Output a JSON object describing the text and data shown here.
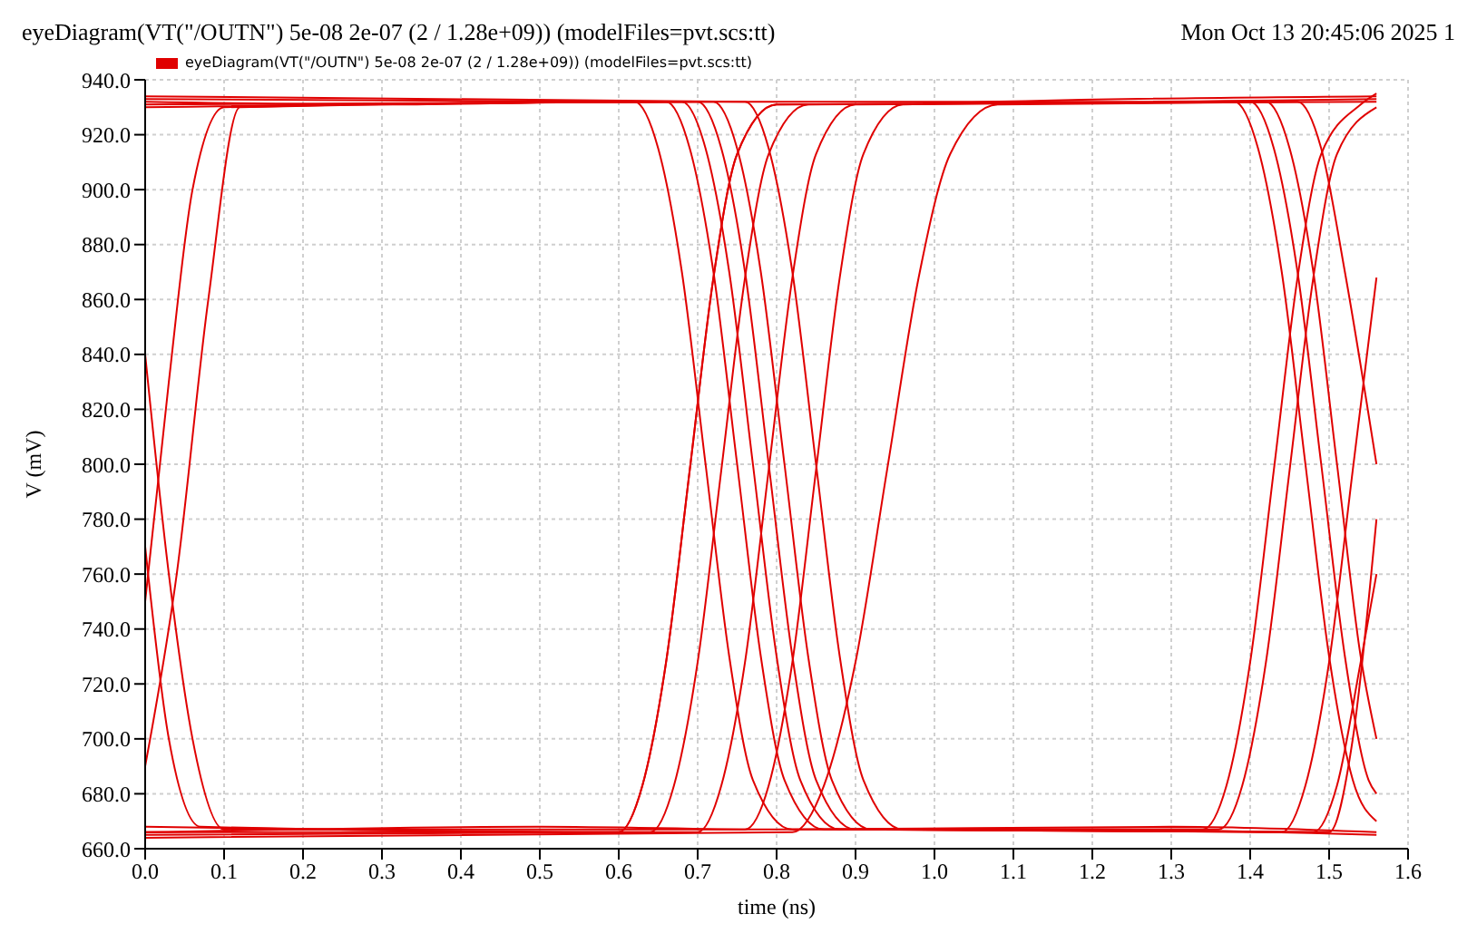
{
  "chart_data": {
    "type": "line",
    "title": "eyeDiagram(VT(\"/OUTN\") 5e-08 2e-07 (2 / 1.28e+09)) (modelFiles=pvt.scs:tt)",
    "annotations": [
      "Mon Oct 13 20:45:06 2025  1"
    ],
    "xlabel": "time (ns)",
    "ylabel": "V (mV)",
    "xlim": [
      0,
      1.6
    ],
    "xticks": [
      {
        "value": 0,
        "label": "0.0"
      },
      {
        "value": 0.1,
        "label": "0.1"
      },
      {
        "value": 0.2,
        "label": "0.2"
      },
      {
        "value": 0.3,
        "label": "0.3"
      },
      {
        "value": 0.4,
        "label": "0.4"
      },
      {
        "value": 0.5,
        "label": "0.5"
      },
      {
        "value": 0.6,
        "label": "0.6"
      },
      {
        "value": 0.7,
        "label": "0.7"
      },
      {
        "value": 0.8,
        "label": "0.8"
      },
      {
        "value": 0.9,
        "label": "0.9"
      },
      {
        "value": 1,
        "label": "1.0"
      },
      {
        "value": 1.1,
        "label": "1.1"
      },
      {
        "value": 1.2,
        "label": "1.2"
      },
      {
        "value": 1.3,
        "label": "1.3"
      },
      {
        "value": 1.4,
        "label": "1.4"
      },
      {
        "value": 1.5,
        "label": "1.5"
      },
      {
        "value": 1.6,
        "label": "1.6"
      }
    ],
    "ylim": [
      660,
      940
    ],
    "yticks": [
      {
        "value": 660,
        "label": "660.0"
      },
      {
        "value": 680,
        "label": "680.0"
      },
      {
        "value": 700,
        "label": "700.0"
      },
      {
        "value": 720,
        "label": "720.0"
      },
      {
        "value": 740,
        "label": "740.0"
      },
      {
        "value": 760,
        "label": "760.0"
      },
      {
        "value": 780,
        "label": "780.0"
      },
      {
        "value": 800,
        "label": "800.0"
      },
      {
        "value": 820,
        "label": "820.0"
      },
      {
        "value": 840,
        "label": "840.0"
      },
      {
        "value": 860,
        "label": "860.0"
      },
      {
        "value": 880,
        "label": "880.0"
      },
      {
        "value": 900,
        "label": "900.0"
      },
      {
        "value": 920,
        "label": "920.0"
      },
      {
        "value": 940,
        "label": "940.0"
      }
    ],
    "grid": true,
    "legend": "top left",
    "marker": "none",
    "line_style": "solid",
    "series": [
      {
        "name": "eyeDiagram(VT(\"/OUTN\") 5e-08 2e-07 (2 / 1.28e+09)) (modelFiles=pvt.scs:tt)",
        "color": "#e00000",
        "x": [
          0,
          0.3,
          0.6,
          0.9,
          1.2,
          1.56
        ],
        "values": [
          932,
          931,
          932,
          932,
          932,
          933
        ]
      },
      {
        "color": "#e00000",
        "x": [
          0,
          0.5,
          0.8,
          1.3,
          1.56
        ],
        "values": [
          666,
          668,
          667,
          668,
          666
        ]
      },
      {
        "color": "#e00000",
        "x": [
          0,
          0.62,
          0.65,
          0.68,
          0.71,
          0.74,
          0.77,
          0.82,
          1.2,
          1.56
        ],
        "values": [
          933,
          932,
          915,
          870,
          800,
          730,
          685,
          667,
          667,
          665
        ]
      },
      {
        "color": "#e00000",
        "x": [
          0,
          0.6,
          0.63,
          0.66,
          0.69,
          0.72,
          0.75,
          0.8,
          1.56
        ],
        "values": [
          665,
          666,
          683,
          728,
          798,
          868,
          913,
          931,
          932
        ]
      },
      {
        "color": "#e00000",
        "x": [
          0,
          0.66,
          0.69,
          0.72,
          0.75,
          0.78,
          0.81,
          0.86,
          1.36,
          1.39,
          1.42,
          1.45,
          1.48,
          1.51,
          1.56
        ],
        "values": [
          931,
          932,
          915,
          870,
          800,
          730,
          685,
          667,
          667,
          683,
          728,
          798,
          868,
          913,
          930
        ]
      },
      {
        "color": "#e00000",
        "x": [
          0,
          0.7,
          0.73,
          0.76,
          0.79,
          0.82,
          0.85,
          0.9,
          1.4,
          1.43,
          1.46,
          1.49,
          1.52,
          1.55,
          1.56
        ],
        "values": [
          666,
          666,
          683,
          728,
          798,
          868,
          913,
          931,
          932,
          915,
          870,
          800,
          730,
          685,
          680
        ]
      },
      {
        "color": "#e00000",
        "x": [
          0,
          0.03,
          0.06,
          0.1,
          0.76,
          0.79,
          0.82,
          0.85,
          0.88,
          0.91,
          0.96,
          1.56
        ],
        "values": [
          840,
          760,
          700,
          667,
          667,
          683,
          728,
          798,
          868,
          913,
          931,
          934
        ]
      },
      {
        "color": "#e00000",
        "x": [
          0,
          0.03,
          0.06,
          0.1,
          0.72,
          0.75,
          0.78,
          0.81,
          0.84,
          0.87,
          0.92,
          1.44,
          1.47,
          1.5,
          1.53,
          1.56
        ],
        "values": [
          750,
          830,
          900,
          930,
          932,
          915,
          870,
          800,
          730,
          685,
          667,
          666,
          683,
          728,
          798,
          868
        ]
      },
      {
        "color": "#e00000",
        "x": [
          0,
          0.82,
          0.86,
          0.9,
          0.94,
          0.98,
          1.02,
          1.08,
          1.46,
          1.49,
          1.52,
          1.56
        ],
        "values": [
          664,
          666,
          683,
          728,
          798,
          868,
          913,
          931,
          932,
          915,
          870,
          800
        ]
      },
      {
        "color": "#e00000",
        "x": [
          0,
          0.7,
          0.73,
          0.76,
          0.79,
          0.82,
          0.85,
          0.9,
          1.34,
          1.37,
          1.4,
          1.43,
          1.46,
          1.49,
          1.54,
          1.56
        ],
        "values": [
          930,
          932,
          915,
          870,
          800,
          730,
          685,
          667,
          667,
          683,
          728,
          798,
          868,
          913,
          931,
          935
        ]
      },
      {
        "color": "#e00000",
        "x": [
          0,
          0.64,
          0.67,
          0.7,
          0.73,
          0.76,
          0.79,
          0.84,
          1.38,
          1.41,
          1.44,
          1.47,
          1.5,
          1.53,
          1.56
        ],
        "values": [
          668,
          666,
          683,
          728,
          798,
          868,
          913,
          931,
          932,
          915,
          870,
          800,
          730,
          685,
          670
        ]
      },
      {
        "color": "#e00000",
        "x": [
          0,
          0.76,
          0.79,
          0.82,
          0.85,
          0.88,
          0.91,
          0.96,
          1.5,
          1.53,
          1.56
        ],
        "values": [
          934,
          932,
          915,
          870,
          800,
          730,
          685,
          667,
          666,
          700,
          780
        ]
      },
      {
        "color": "#e00000",
        "x": [
          0,
          0.03,
          0.07,
          0.6,
          0.63,
          0.66,
          0.69,
          0.72,
          0.75,
          0.8,
          1.42,
          1.45,
          1.48,
          1.51,
          1.54,
          1.56
        ],
        "values": [
          770,
          700,
          668,
          666,
          683,
          728,
          798,
          868,
          913,
          931,
          932,
          915,
          870,
          800,
          730,
          700
        ]
      },
      {
        "color": "#e00000",
        "x": [
          0,
          0.04,
          0.08,
          0.12,
          0.68,
          0.71,
          0.74,
          0.77,
          0.8,
          0.83,
          0.88,
          1.48,
          1.51,
          1.54,
          1.56
        ],
        "values": [
          690,
          760,
          860,
          930,
          932,
          915,
          870,
          800,
          730,
          685,
          667,
          666,
          683,
          728,
          760
        ]
      }
    ]
  }
}
